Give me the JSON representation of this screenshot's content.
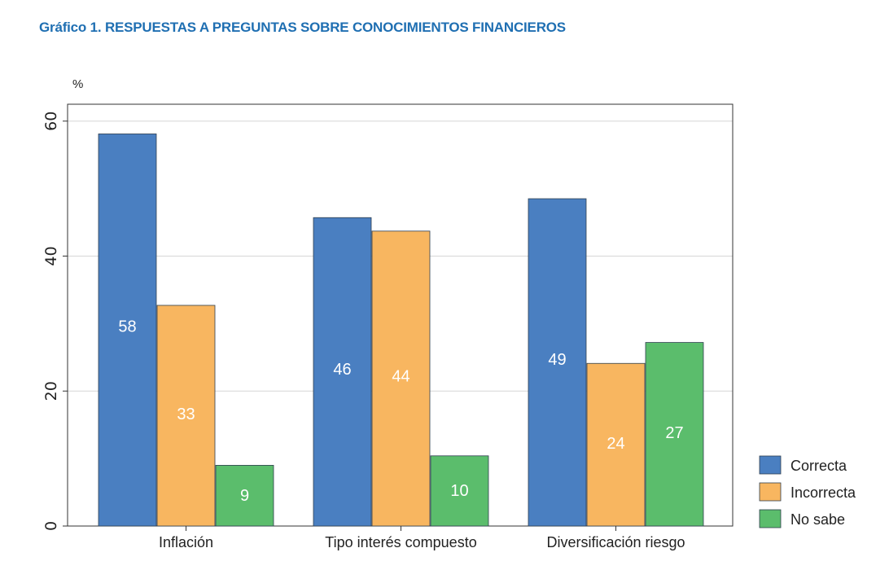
{
  "chart_data": {
    "type": "bar",
    "title": "Gráfico 1. RESPUESTAS A PREGUNTAS SOBRE CONOCIMIENTOS FINANCIEROS",
    "ylabel": "%",
    "xlabel": "",
    "ylim": [
      0,
      62.5
    ],
    "yticks": [
      0,
      20,
      40,
      60
    ],
    "grid": true,
    "legend_position": "bottom-right",
    "categories": [
      "Inflación",
      "Tipo interés compuesto",
      "Diversificación riesgo"
    ],
    "series": [
      {
        "name": "Correcta",
        "color": "#4a7fc1",
        "values": [
          58.1,
          45.7,
          48.5
        ],
        "labels": [
          "58",
          "46",
          "49"
        ]
      },
      {
        "name": "Incorrecta",
        "color": "#f8b660",
        "values": [
          32.7,
          43.7,
          24.1
        ],
        "labels": [
          "33",
          "44",
          "24"
        ]
      },
      {
        "name": "No sabe",
        "color": "#5bbd6c",
        "values": [
          9.0,
          10.4,
          27.2
        ],
        "labels": [
          "9",
          "10",
          "27"
        ]
      }
    ]
  }
}
